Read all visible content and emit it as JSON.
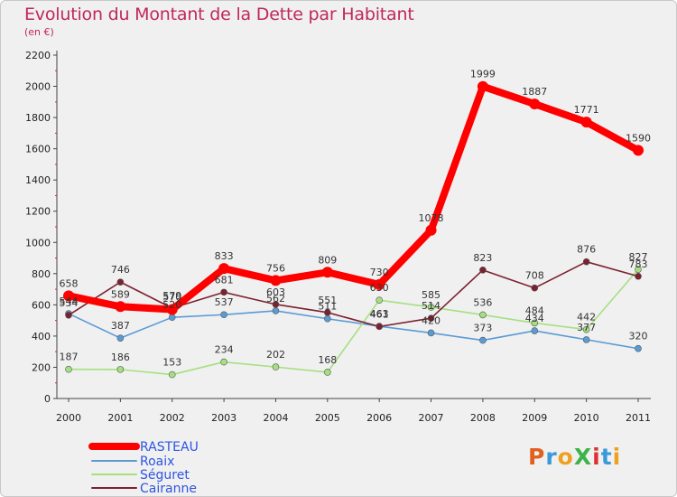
{
  "title": "Evolution du Montant de la Dette par Habitant",
  "subtitle": "(en €)",
  "logo": "ProXiti",
  "chart_data": {
    "type": "line",
    "x": [
      "2000",
      "2001",
      "2002",
      "2003",
      "2004",
      "2005",
      "2006",
      "2007",
      "2008",
      "2009",
      "2010",
      "2011"
    ],
    "yticks": [
      "0",
      "200",
      "400",
      "600",
      "800",
      "1000",
      "1200",
      "1400",
      "1600",
      "1800",
      "2000",
      "2200"
    ],
    "ylim": [
      0,
      2200
    ],
    "grid": false,
    "legend_position": "bottom-left",
    "series": [
      {
        "name": "RASTEAU",
        "color": "#ff0000",
        "values": [
          658,
          589,
          570,
          833,
          756,
          809,
          730,
          1078,
          1999,
          1887,
          1771,
          1590
        ]
      },
      {
        "name": "Roaix",
        "color": "#5a9bd5",
        "values": [
          544,
          387,
          520,
          537,
          562,
          511,
          463,
          420,
          373,
          434,
          377,
          320
        ]
      },
      {
        "name": "Séguret",
        "color": "#a5e080",
        "values": [
          187,
          186,
          153,
          234,
          202,
          168,
          630,
          585,
          536,
          484,
          442,
          827
        ]
      },
      {
        "name": "Cairanne",
        "color": "#7b2230",
        "values": [
          534,
          746,
          579,
          681,
          603,
          551,
          461,
          514,
          823,
          708,
          876,
          783
        ]
      }
    ]
  }
}
